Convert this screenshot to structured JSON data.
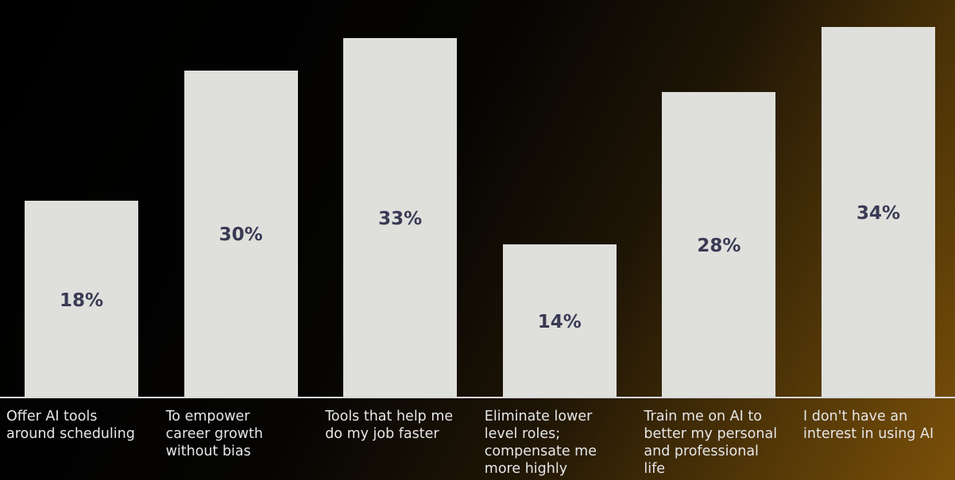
{
  "chart_data": {
    "type": "bar",
    "categories": [
      "Offer AI tools\naround scheduling",
      "To empower\ncareer growth\nwithout bias",
      "Tools that help me\ndo my job faster",
      "Eliminate lower\nlevel roles;\ncompensate me\nmore highly",
      "Train me on AI to\nbetter my personal\nand professional\nlife",
      "I don't have an\ninterest in using AI"
    ],
    "values": [
      18,
      30,
      33,
      14,
      28,
      34
    ],
    "value_labels": [
      "18%",
      "30%",
      "33%",
      "14%",
      "28%",
      "34%"
    ],
    "unit": "%",
    "ylim": [
      0,
      34
    ],
    "grid": false,
    "legend": "none",
    "title": "",
    "xlabel": "",
    "ylabel": "",
    "colors": {
      "bar": "#dfe0dc",
      "value_label": "#3a3a54",
      "category_label": "#e6e6e6",
      "axis": "#d8d8d8"
    }
  }
}
